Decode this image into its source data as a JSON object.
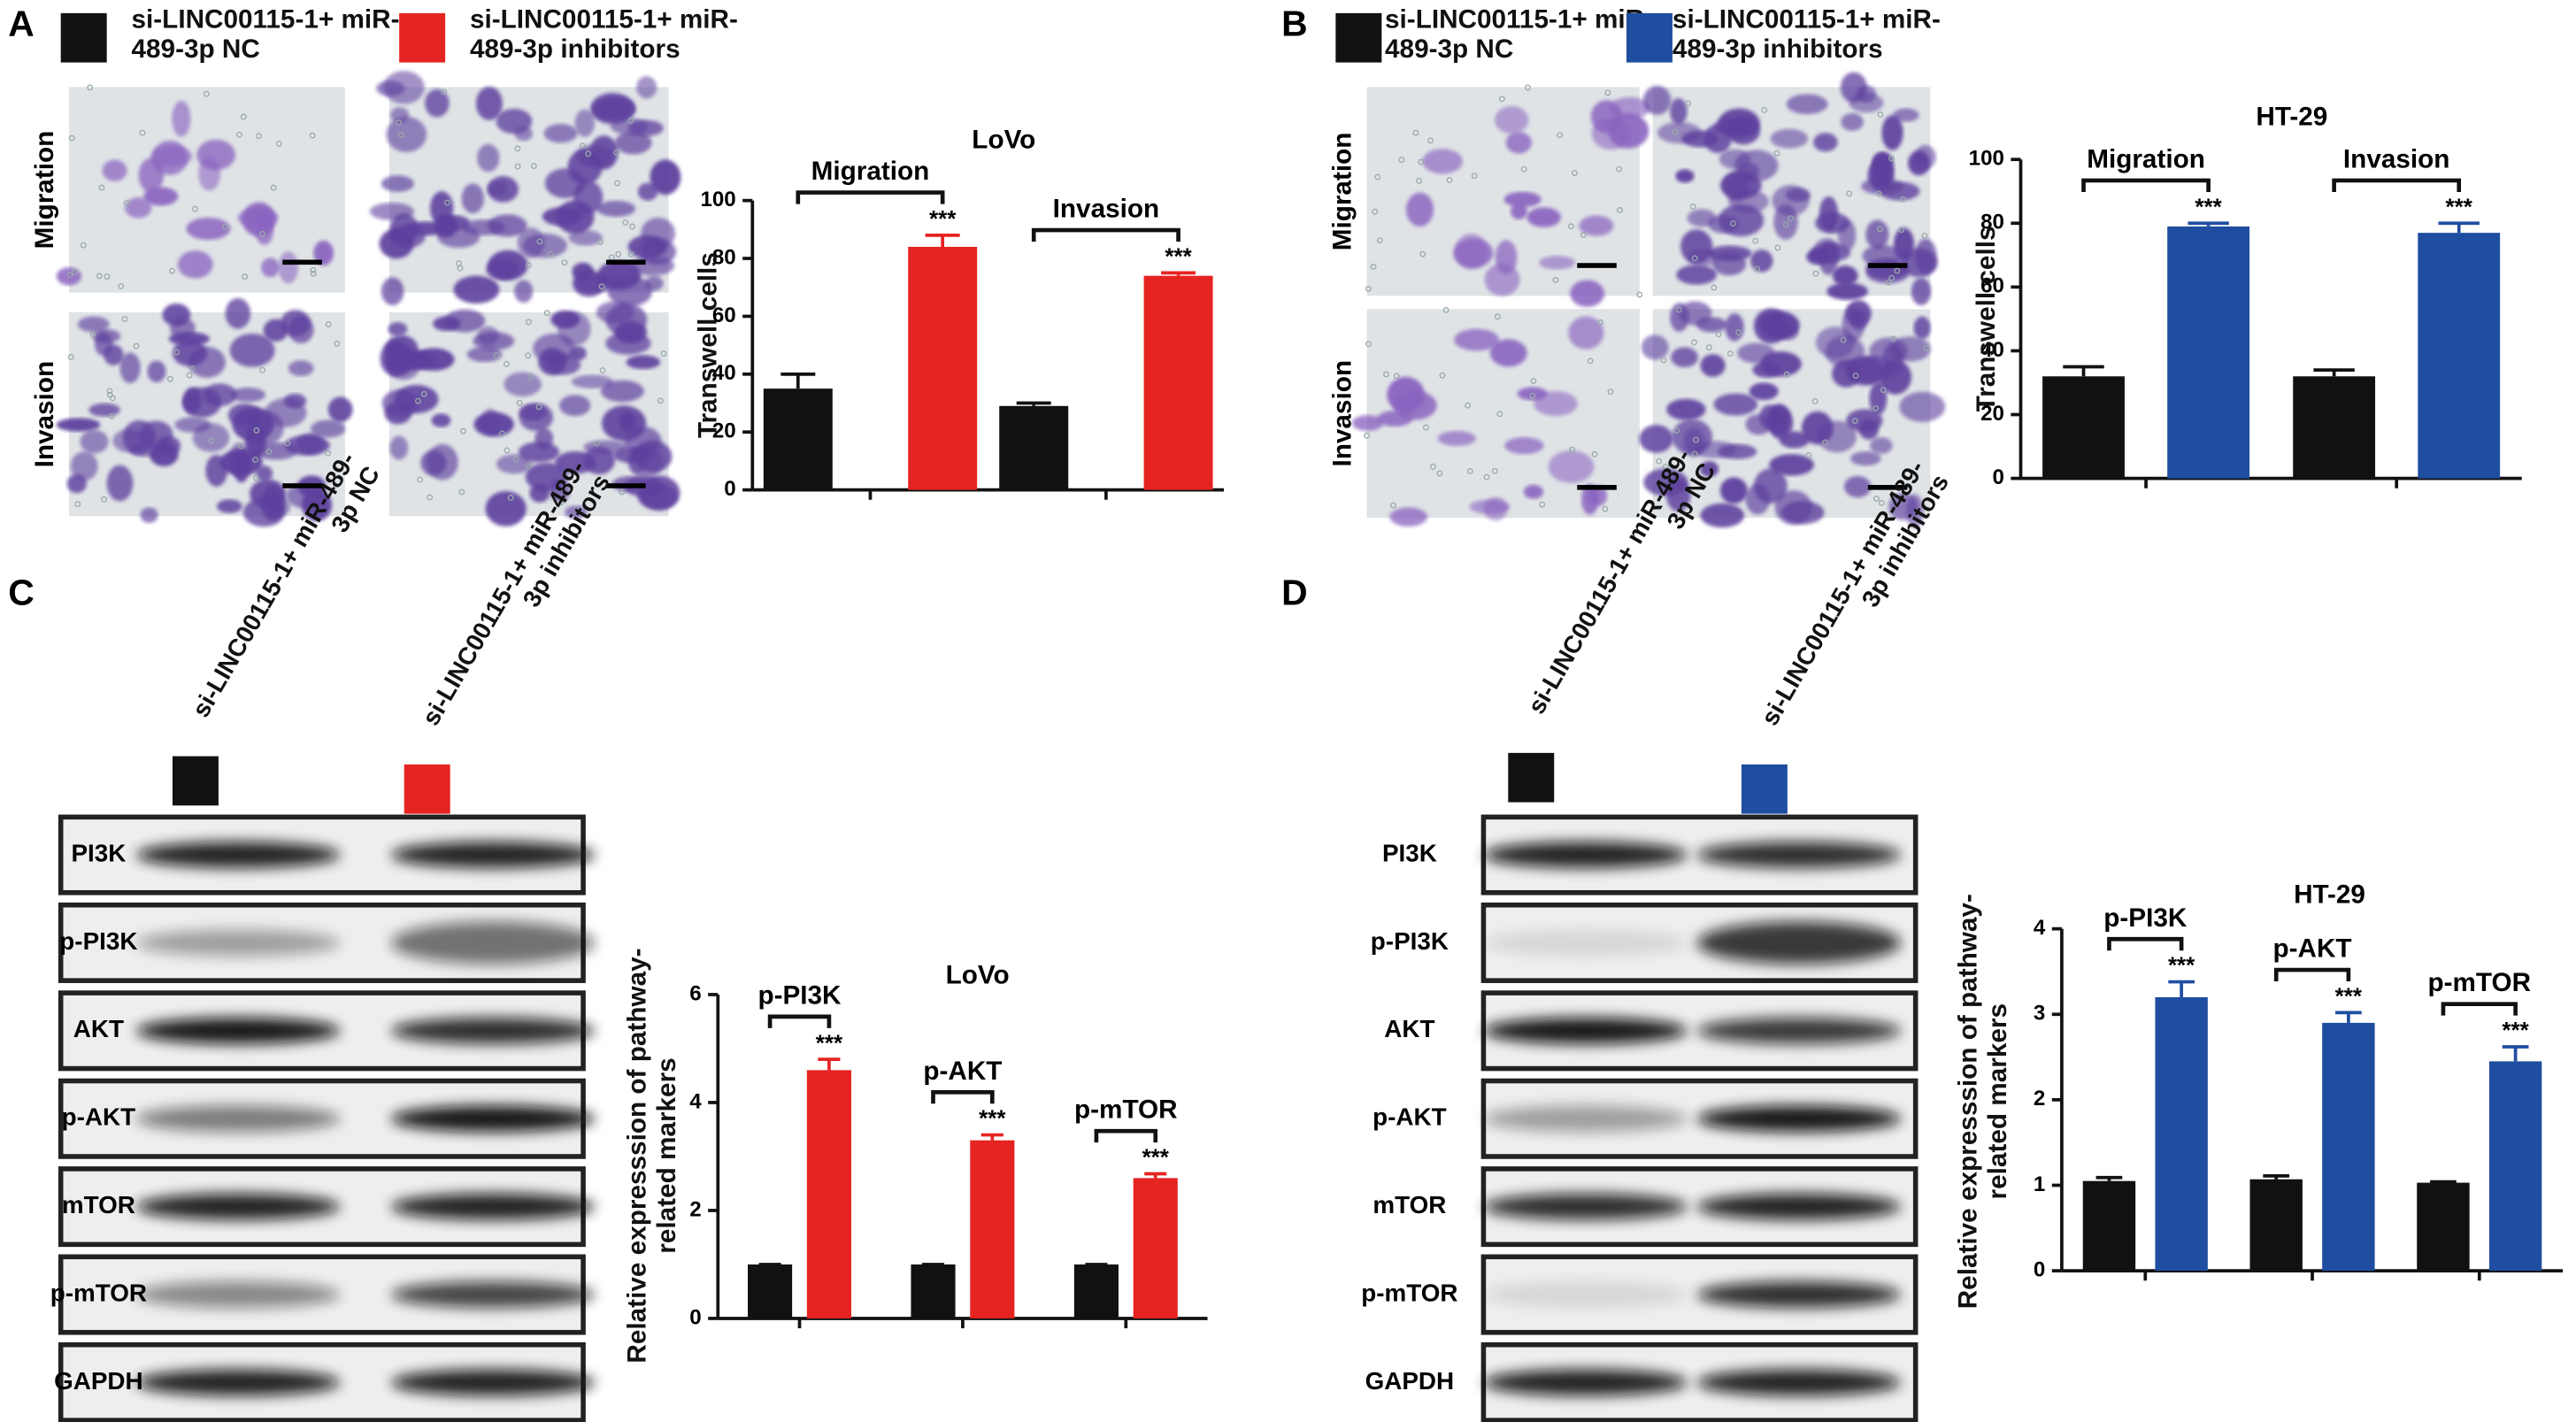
{
  "figure": {
    "panel_labels": [
      "A",
      "B",
      "C",
      "D"
    ],
    "image_rows": [
      "Migration",
      "Invasion"
    ],
    "blot_rows": [
      "PI3K",
      "p-PI3K",
      "AKT",
      "p-AKT",
      "mTOR",
      "p-mTOR",
      "GAPDH"
    ]
  },
  "chart_data": [
    {
      "type": "bar",
      "title": "LoVo",
      "y_label": "Transwell cells",
      "categories": [
        "Migration",
        "Invasion"
      ],
      "series": [
        {
          "name": "si-LINC00115-1+ miR-489-3p NC",
          "color": "#111111",
          "values": [
            35,
            29
          ],
          "errors": [
            5,
            1
          ]
        },
        {
          "name": "si-LINC00115-1+ miR-489-3p inhibitors",
          "color": "#e52421",
          "values": [
            84,
            74
          ],
          "errors": [
            4,
            1
          ]
        }
      ],
      "significance": [
        "***",
        "***"
      ],
      "ylim": [
        0,
        100
      ],
      "yticks": [
        0,
        20,
        40,
        60,
        80,
        100
      ]
    },
    {
      "type": "bar",
      "title": "HT-29",
      "y_label": "Transwell cells",
      "categories": [
        "Migration",
        "Invasion"
      ],
      "series": [
        {
          "name": "si-LINC00115-1+ miR-489-3p NC",
          "color": "#111111",
          "values": [
            32,
            32
          ],
          "errors": [
            3,
            2
          ]
        },
        {
          "name": "si-LINC00115-1+ miR-489-3p inhibitors",
          "color": "#1f4ea1",
          "values": [
            79,
            77
          ],
          "errors": [
            1,
            3
          ]
        }
      ],
      "significance": [
        "***",
        "***"
      ],
      "ylim": [
        0,
        100
      ],
      "yticks": [
        0,
        20,
        40,
        60,
        80,
        100
      ]
    },
    {
      "type": "bar",
      "title": "LoVo",
      "y_label": "Relative expresssion of pathway-related markers",
      "categories": [
        "p-PI3K",
        "p-AKT",
        "p-mTOR"
      ],
      "series": [
        {
          "name": "si-LINC00115-1+ miR-489-3p NC",
          "color": "#111111",
          "values": [
            1,
            1,
            1
          ],
          "errors": [
            0,
            0,
            0
          ]
        },
        {
          "name": "si-LINC00115-1+ miR-489-3p inhibitors",
          "color": "#e52421",
          "values": [
            4.6,
            3.3,
            2.6
          ],
          "errors": [
            0.2,
            0.1,
            0.08
          ]
        }
      ],
      "significance": [
        "***",
        "***",
        "***"
      ],
      "ylim": [
        0,
        6
      ],
      "yticks": [
        0,
        2,
        4,
        6
      ]
    },
    {
      "type": "bar",
      "title": "HT-29",
      "y_label": "Relative expresssion of pathway-related markers",
      "categories": [
        "p-PI3K",
        "p-AKT",
        "p-mTOR"
      ],
      "series": [
        {
          "name": "si-LINC00115-1+ miR-489-3p NC",
          "color": "#111111",
          "values": [
            1.05,
            1.07,
            1.03
          ],
          "errors": [
            0.04,
            0.04,
            0.01
          ]
        },
        {
          "name": "si-LINC00115-1+ miR-489-3p inhibitors",
          "color": "#1f4ea1",
          "values": [
            3.2,
            2.9,
            2.45
          ],
          "errors": [
            0.18,
            0.12,
            0.17
          ]
        }
      ],
      "significance": [
        "***",
        "***",
        "***"
      ],
      "ylim": [
        0,
        4
      ],
      "yticks": [
        0,
        1,
        2,
        3,
        4
      ]
    }
  ]
}
